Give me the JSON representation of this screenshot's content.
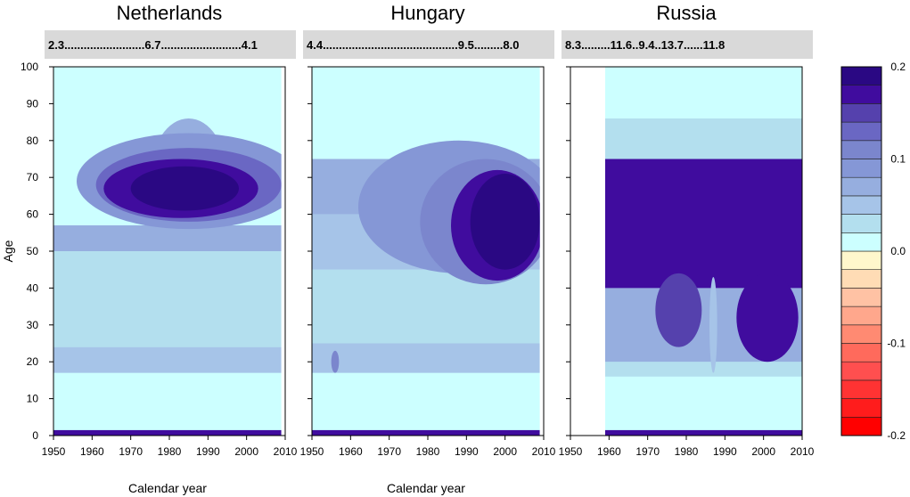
{
  "chart_data": {
    "type": "heatmap",
    "panels": [
      {
        "title": "Netherlands",
        "strip": "2.3.........................6.7.........................4.1",
        "year_range": [
          1950,
          2009
        ],
        "xlabel": "Calendar year",
        "bands": [
          {
            "age_from": 0,
            "age_to": 1.5,
            "value": 0.17
          },
          {
            "age_from": 1.5,
            "age_to": 17,
            "value": 0.01
          },
          {
            "age_from": 17,
            "age_to": 24,
            "value": 0.04
          },
          {
            "age_from": 24,
            "age_to": 50,
            "value": 0.03
          },
          {
            "age_from": 50,
            "age_to": 57,
            "value": 0.06
          },
          {
            "age_from": 88,
            "age_to": 100,
            "value": 0.01
          }
        ],
        "blobs": [
          {
            "year": 1985,
            "age": 70,
            "ry": 10,
            "ra": 16,
            "value": 0.06
          },
          {
            "year": 1985,
            "age": 69,
            "ry": 29,
            "ra": 13,
            "value": 0.09
          },
          {
            "year": 1985,
            "age": 68,
            "ry": 24,
            "ra": 10,
            "value": 0.13
          },
          {
            "year": 1983,
            "age": 67,
            "ry": 20,
            "ra": 8,
            "value": 0.17
          },
          {
            "year": 1984,
            "age": 67,
            "ry": 14,
            "ra": 6,
            "value": 0.19
          }
        ]
      },
      {
        "title": "Hungary",
        "strip": "4.4..........................................9.5.........8.0",
        "year_range": [
          1950,
          2009
        ],
        "xlabel": "Calendar year",
        "bands": [
          {
            "age_from": 0,
            "age_to": 1.5,
            "value": 0.17
          },
          {
            "age_from": 1.5,
            "age_to": 17,
            "value": 0.01
          },
          {
            "age_from": 17,
            "age_to": 25,
            "value": 0.04
          },
          {
            "age_from": 25,
            "age_to": 45,
            "value": 0.03
          },
          {
            "age_from": 45,
            "age_to": 60,
            "value": 0.05
          },
          {
            "age_from": 60,
            "age_to": 75,
            "value": 0.07
          },
          {
            "age_from": 86,
            "age_to": 100,
            "value": 0.01
          }
        ],
        "blobs": [
          {
            "year": 1988,
            "age": 62,
            "ry": 26,
            "ra": 18,
            "value": 0.08
          },
          {
            "year": 1995,
            "age": 58,
            "ry": 17,
            "ra": 17,
            "value": 0.12
          },
          {
            "year": 1998,
            "age": 57,
            "ry": 12,
            "ra": 15,
            "value": 0.16
          },
          {
            "year": 2000,
            "age": 58,
            "ry": 9,
            "ra": 13,
            "value": 0.19
          },
          {
            "year": 1956,
            "age": 20,
            "ry": 1,
            "ra": 3,
            "value": 0.12
          }
        ]
      },
      {
        "title": "Russia",
        "strip": "8.3.........11.6..9.4..13.7......11.8",
        "year_range": [
          1959,
          2010
        ],
        "xlabel": "",
        "bands": [
          {
            "age_from": 0,
            "age_to": 1.5,
            "value": 0.17
          },
          {
            "age_from": 1.5,
            "age_to": 16,
            "value": 0.01
          },
          {
            "age_from": 16,
            "age_to": 20,
            "value": 0.03
          },
          {
            "age_from": 20,
            "age_to": 40,
            "value": 0.07
          },
          {
            "age_from": 40,
            "age_to": 75,
            "value": 0.17
          },
          {
            "age_from": 75,
            "age_to": 86,
            "value": 0.03
          },
          {
            "age_from": 86,
            "age_to": 100,
            "value": 0.01
          }
        ],
        "blobs": [
          {
            "year": 1978,
            "age": 34,
            "ry": 6,
            "ra": 10,
            "value": 0.14
          },
          {
            "year": 2001,
            "age": 32,
            "ry": 8,
            "ra": 12,
            "value": 0.16
          },
          {
            "year": 1987,
            "age": 30,
            "ry": 1,
            "ra": 13,
            "value": 0.04
          }
        ]
      }
    ],
    "x_ticks": [
      1950,
      1960,
      1970,
      1980,
      1990,
      2000,
      2010
    ],
    "y_ticks": [
      0,
      10,
      20,
      30,
      40,
      50,
      60,
      70,
      80,
      90,
      100
    ],
    "ylabel": "Age",
    "xlim": [
      1950,
      2010
    ],
    "ylim": [
      0,
      100
    ],
    "colorbar": {
      "range": [
        -0.2,
        0.2
      ],
      "ticks": [
        "0.2",
        "0.1",
        "0.0",
        "-0.1",
        "-0.2"
      ],
      "tick_values": [
        0.2,
        0.1,
        0.0,
        -0.1,
        -0.2
      ],
      "colors": [
        "#ff0000",
        "#ff1c1c",
        "#ff3333",
        "#ff4f4f",
        "#ff6a5c",
        "#ff8a72",
        "#ffa78c",
        "#ffc2a4",
        "#ffdcb5",
        "#fff7cc",
        "#ccffff",
        "#b3dfee",
        "#a6c4e8",
        "#96aedf",
        "#8597d6",
        "#7b86cd",
        "#6a67c3",
        "#5541ad",
        "#400c9e",
        "#2a0883"
      ]
    }
  }
}
